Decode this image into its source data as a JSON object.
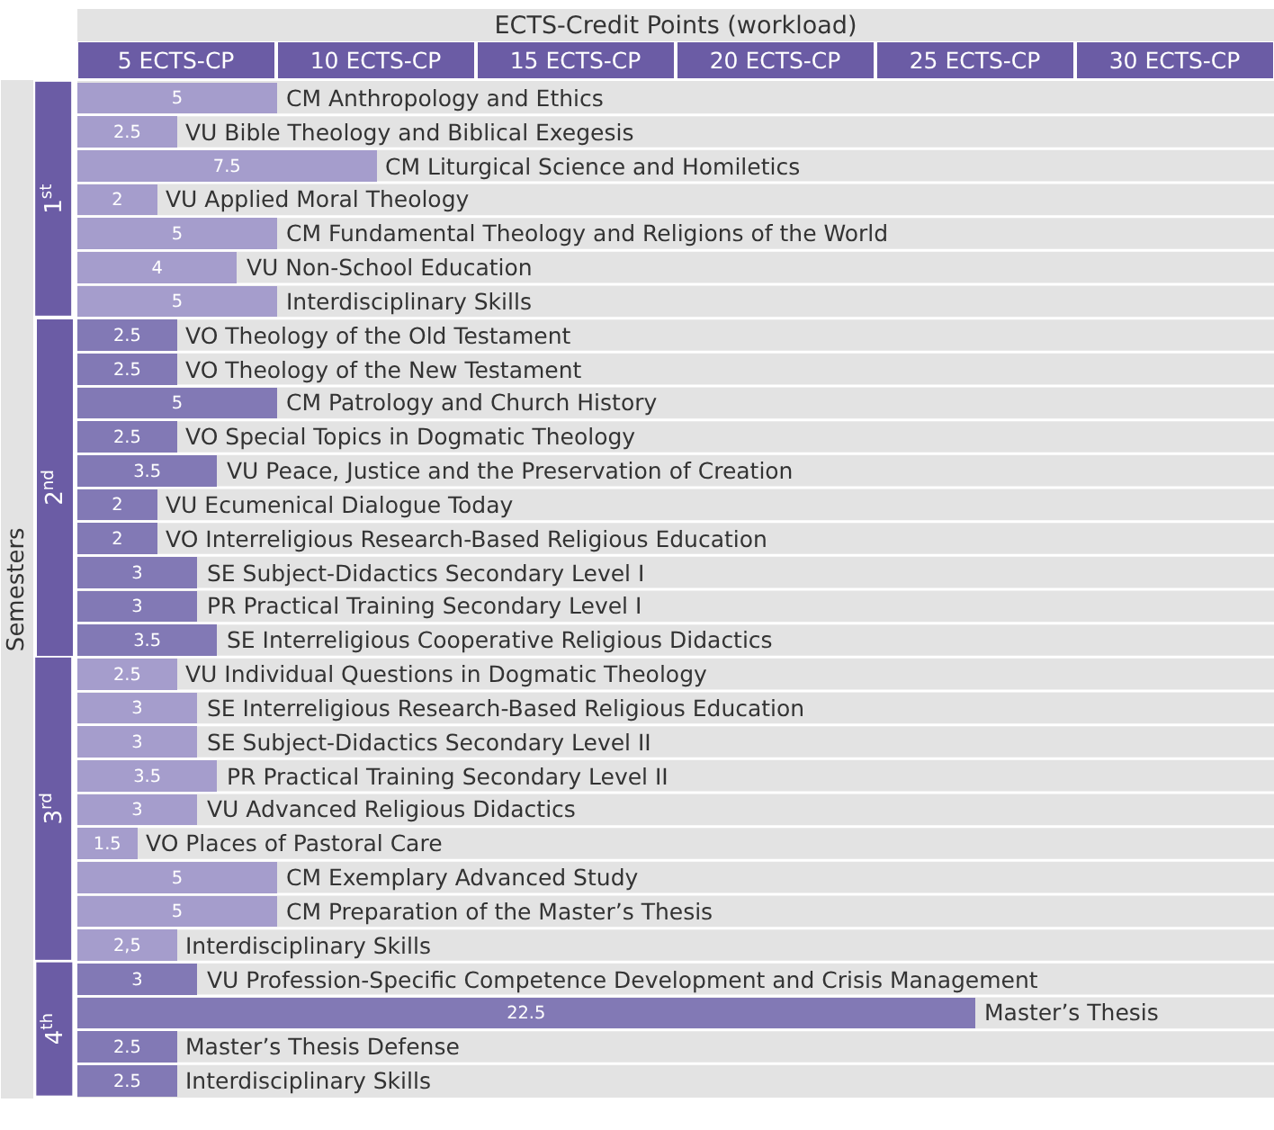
{
  "chart_data": {
    "type": "bar",
    "orientation": "horizontal",
    "stacked": true,
    "title": "ECTS-Credit Points (workload)",
    "ylabel": "Semesters",
    "categories": [
      "CM Anthropology and Ethics",
      "VU Bible Theology and Biblical Exegesis",
      "CM Liturgical Science and Homiletics",
      "VU Applied Moral Theology",
      "CM Fundamental Theology and Religions of the World",
      "VU Non-School Education",
      "Interdisciplinary Skills",
      "VO Theology of the Old Testament",
      "VO Theology of the New Testament",
      "CM Patrology and Church History",
      "VO Special Topics in Dogmatic Theology",
      "VU Peace, Justice and the Preservation of Creation",
      "VU Ecumenical Dialogue Today",
      "VO Interreligious Research-Based Religious Education",
      "SE Subject-Didactics Secondary Level I",
      "PR Practical Training Secondary Level I",
      "SE Interreligious Cooperative Religious Didactics",
      "VU Individual Questions in Dogmatic Theology",
      "SE Interreligious Research-Based Religious Education",
      "SE Subject-Didactics Secondary Level II",
      "PR Practical Training Secondary Level II",
      "VU Advanced Religious Didactics",
      "VO Places of Pastoral Care",
      "CM Exemplary Advanced Study",
      "CM Preparation of the Master’s Thesis",
      "Interdisciplinary Skills",
      "VU Profession-Specific Competence Development and Crisis Management",
      "Master’s Thesis",
      "Master’s Thesis Defense",
      "Interdisciplinary Skills"
    ],
    "series": [
      {
        "color": "#a59dcc",
        "values": [
          5,
          2.5,
          7.5,
          2,
          5,
          4,
          5,
          null,
          null,
          null,
          null,
          null,
          null,
          null,
          null,
          null,
          null,
          null,
          null,
          null,
          null,
          null,
          null,
          null,
          null,
          null,
          null,
          null,
          null,
          null
        ],
        "value_labels": [
          "5",
          "2.5",
          "7.5",
          "2",
          "5",
          "4",
          "5",
          null,
          null,
          null,
          null,
          null,
          null,
          null,
          null,
          null,
          null,
          null,
          null,
          null,
          null,
          null,
          null,
          null,
          null,
          null,
          null,
          null,
          null,
          null
        ]
      },
      {
        "color": "#8279b5",
        "values": [
          null,
          null,
          null,
          null,
          null,
          null,
          null,
          2.5,
          2.5,
          5,
          2.5,
          3.5,
          2,
          2,
          3,
          3,
          3.5,
          null,
          null,
          null,
          null,
          null,
          null,
          null,
          null,
          null,
          null,
          null,
          null,
          null
        ],
        "value_labels": [
          null,
          null,
          null,
          null,
          null,
          null,
          null,
          "2.5",
          "2.5",
          "5",
          "2.5",
          "3.5",
          "2",
          "2",
          "3",
          "3",
          "3.5",
          null,
          null,
          null,
          null,
          null,
          null,
          null,
          null,
          null,
          null,
          null,
          null,
          null
        ]
      },
      {
        "color": "#a59dcc",
        "values": [
          null,
          null,
          null,
          null,
          null,
          null,
          null,
          null,
          null,
          null,
          null,
          null,
          null,
          null,
          null,
          null,
          null,
          2.5,
          3,
          3,
          3.5,
          3,
          1.5,
          5,
          5,
          2.5,
          null,
          null,
          null,
          null
        ],
        "value_labels": [
          null,
          null,
          null,
          null,
          null,
          null,
          null,
          null,
          null,
          null,
          null,
          null,
          null,
          null,
          null,
          null,
          null,
          "2.5",
          "3",
          "3",
          "3.5",
          "3",
          "1.5",
          "5",
          "5",
          "2,5",
          null,
          null,
          null,
          null
        ]
      },
      {
        "color": "#8279b5",
        "values": [
          null,
          null,
          null,
          null,
          null,
          null,
          null,
          null,
          null,
          null,
          null,
          null,
          null,
          null,
          null,
          null,
          null,
          null,
          null,
          null,
          null,
          null,
          null,
          null,
          null,
          null,
          3,
          22.5,
          2.5,
          2.5
        ],
        "value_labels": [
          null,
          null,
          null,
          null,
          null,
          null,
          null,
          null,
          null,
          null,
          null,
          null,
          null,
          null,
          null,
          null,
          null,
          null,
          null,
          null,
          null,
          null,
          null,
          null,
          null,
          null,
          "3",
          "22.5",
          "2.5",
          "2.5"
        ]
      }
    ],
    "xlim": [
      0,
      30
    ],
    "annotations": [
      "5 ECTS-CP",
      "10 ECTS-CP",
      "15 ECTS-CP",
      "20 ECTS-CP",
      "25 ECTS-CP",
      "30 ECTS-CP",
      "1$^{st}$",
      "2$^{nd}$",
      "3$^{rd}$",
      "4$^{th}$"
    ],
    "tick_labels": false,
    "grid": false,
    "legend": false
  }
}
